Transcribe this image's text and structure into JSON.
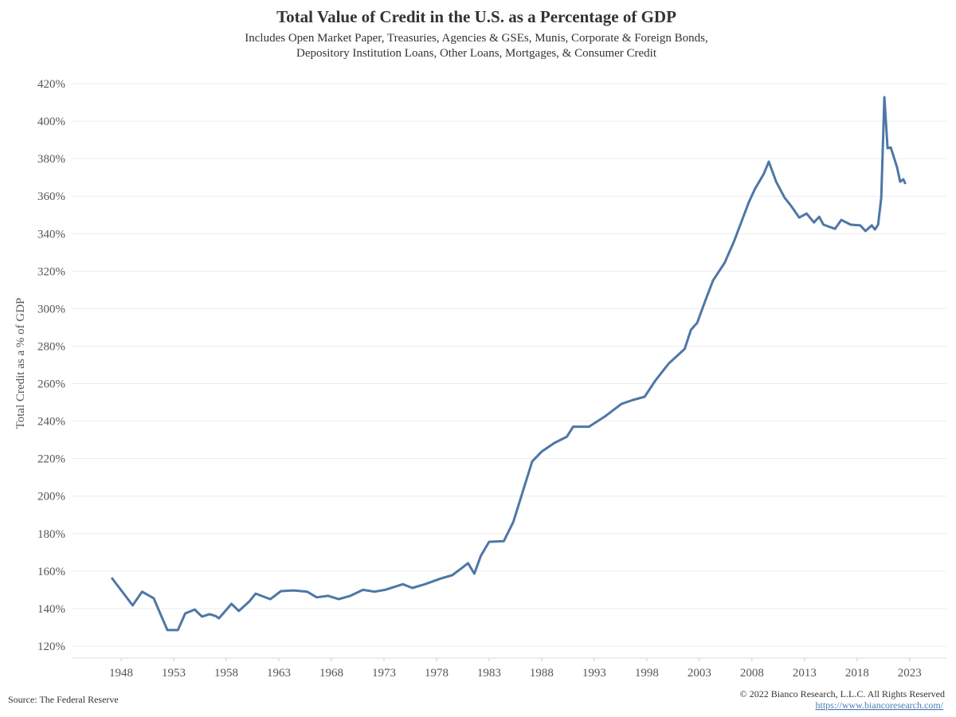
{
  "chart_data": {
    "type": "line",
    "title": "Total Value of Credit in the U.S. as a Percentage of GDP",
    "subtitle": [
      "Includes Open Market Paper, Treasuries, Agencies & GSEs, Munis, Corporate & Foreign Bonds,",
      "Depository Institution Loans, Other Loans, Mortgages, & Consumer Credit"
    ],
    "y_label": "Total Credit as a % of GDP",
    "source": "Source: The Federal Reserve",
    "copyright": "© 2022 Bianco Research, L.L.C. All Rights Reserved",
    "url": "https://www.biancoresearch.com/",
    "x": [
      1947.1,
      1949.1,
      1950.0,
      1951.1,
      1952.4,
      1953.4,
      1954.1,
      1955.0,
      1955.7,
      1956.4,
      1957.0,
      1957.3,
      1958.5,
      1959.2,
      1960.2,
      1960.8,
      1962.2,
      1963.2,
      1964.4,
      1965.7,
      1966.6,
      1967.7,
      1968.7,
      1969.8,
      1971.0,
      1972.1,
      1973.1,
      1974.8,
      1975.7,
      1976.9,
      1978.4,
      1979.5,
      1980.4,
      1981.0,
      1981.6,
      1982.2,
      1983.0,
      1984.4,
      1985.3,
      1986.2,
      1987.1,
      1988.0,
      1989.2,
      1990.4,
      1991.0,
      1992.5,
      1994.0,
      1995.6,
      1996.7,
      1997.8,
      1998.8,
      2000.1,
      2001.6,
      2002.2,
      2002.8,
      2003.6,
      2004.3,
      2005.4,
      2006.3,
      2007.7,
      2008.3,
      2009.1,
      2009.6,
      2010.3,
      2011.1,
      2011.7,
      2012.5,
      2013.2,
      2013.9,
      2014.4,
      2014.8,
      2015.9,
      2016.5,
      2017.4,
      2018.3,
      2018.8,
      2019.4,
      2019.7,
      2020.0,
      2020.3,
      2020.6,
      2020.9,
      2021.2,
      2021.8,
      2022.1,
      2022.4,
      2022.6
    ],
    "series": [
      {
        "name": "Total Credit as a % of GDP",
        "color": "#4e77a6",
        "values": [
          156.5,
          141.7,
          149.0,
          145.5,
          128.5,
          128.5,
          137.4,
          139.5,
          135.7,
          137.0,
          136.0,
          134.8,
          142.5,
          138.7,
          143.8,
          148.0,
          145.0,
          149.3,
          149.7,
          149.0,
          146.0,
          146.8,
          145.0,
          146.8,
          150.0,
          149.0,
          150.0,
          153.0,
          151.0,
          153.0,
          156.0,
          157.8,
          161.6,
          164.2,
          158.6,
          168.0,
          175.6,
          176.0,
          186.2,
          202.4,
          218.5,
          223.7,
          228.3,
          231.7,
          237.0,
          237.0,
          242.4,
          249.2,
          251.3,
          253.0,
          261.5,
          270.8,
          278.5,
          288.7,
          292.5,
          304.8,
          315.0,
          324.4,
          335.9,
          356.7,
          364.0,
          371.6,
          378.4,
          367.8,
          359.2,
          355.0,
          348.6,
          350.7,
          346.0,
          349.0,
          344.8,
          342.6,
          347.3,
          344.8,
          344.4,
          341.4,
          344.4,
          342.2,
          344.8,
          359.2,
          412.8,
          385.6,
          386.0,
          375.4,
          367.7,
          369.0,
          366.5
        ]
      }
    ],
    "xlim": [
      1943.3,
      2026.5
    ],
    "xticks": [
      1948,
      1953,
      1958,
      1963,
      1968,
      1973,
      1978,
      1983,
      1988,
      1993,
      1998,
      2003,
      2008,
      2013,
      2018,
      2023
    ],
    "ylim": [
      113.6,
      426.4
    ],
    "yticks": [
      {
        "value": 120,
        "label": "120%"
      },
      {
        "value": 140,
        "label": "140%"
      },
      {
        "value": 160,
        "label": "160%"
      },
      {
        "value": 180,
        "label": "180%"
      },
      {
        "value": 200,
        "label": "200%"
      },
      {
        "value": 220,
        "label": "220%"
      },
      {
        "value": 240,
        "label": "240%"
      },
      {
        "value": 260,
        "label": "260%"
      },
      {
        "value": 280,
        "label": "280%"
      },
      {
        "value": 300,
        "label": "300%"
      },
      {
        "value": 320,
        "label": "320%"
      },
      {
        "value": 340,
        "label": "340%"
      },
      {
        "value": 360,
        "label": "360%"
      },
      {
        "value": 380,
        "label": "380%"
      },
      {
        "value": 400,
        "label": "400%"
      },
      {
        "value": 420,
        "label": "420%"
      }
    ],
    "grid": true
  }
}
